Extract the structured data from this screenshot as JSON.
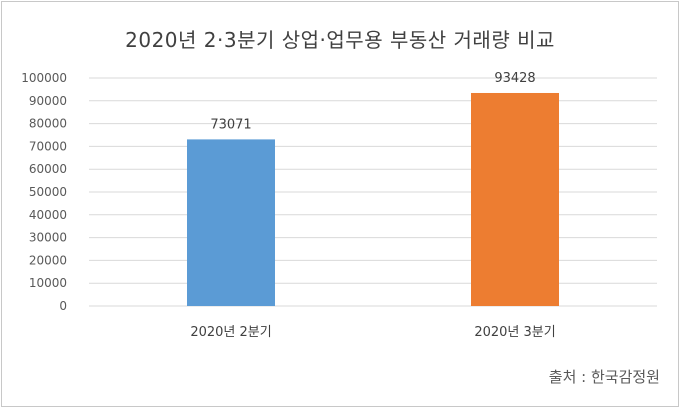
{
  "chart_data": {
    "type": "bar",
    "title": "2020년 2·3분기 상업·업무용 부동산 거래량 비교",
    "categories": [
      "2020년 2분기",
      "2020년 3분기"
    ],
    "values": [
      73071,
      93428
    ],
    "data_labels": [
      "73071",
      "93428"
    ],
    "bar_colors": [
      "#5b9bd5",
      "#ed7d31"
    ],
    "ylim": [
      0,
      100000
    ],
    "yticks": [
      0,
      10000,
      20000,
      30000,
      40000,
      50000,
      60000,
      70000,
      80000,
      90000,
      100000
    ],
    "ytick_labels": [
      "0",
      "10000",
      "20000",
      "30000",
      "40000",
      "50000",
      "60000",
      "70000",
      "80000",
      "90000",
      "100000"
    ],
    "grid": true,
    "legend": "none"
  },
  "source": "출처 : 한국감정원",
  "colors": {
    "grid": "#d9d9d9",
    "text": "#595959"
  }
}
